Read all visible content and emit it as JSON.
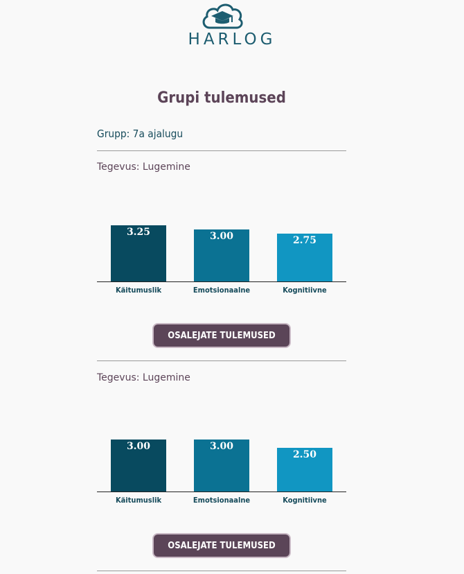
{
  "logo": {
    "text": "HARLOG",
    "icon": "cloud-graduation-cap-icon"
  },
  "page": {
    "title": "Grupi tulemused",
    "group": "Grupp: 7a ajalugu"
  },
  "colors": {
    "bar1": "#084a5f",
    "bar2": "#0b7293",
    "bar3": "#1196c2",
    "button": "#5b4558",
    "title": "#5c4458",
    "group": "#164b5b"
  },
  "sections": [
    {
      "activity": "Tegevus: Lugemine",
      "button_label": "OSALEJATE TULEMUSED"
    },
    {
      "activity": "Tegevus: Lugemine",
      "button_label": "OSALEJATE TULEMUSED"
    }
  ],
  "chart_data": [
    {
      "type": "bar",
      "categories": [
        "Käitumuslik",
        "Emotsionaalne",
        "Kognitiivne"
      ],
      "values": [
        3.25,
        3.0,
        2.75
      ],
      "value_labels": [
        "3.25",
        "3.00",
        "2.75"
      ],
      "ylim": [
        0,
        4
      ]
    },
    {
      "type": "bar",
      "categories": [
        "Käitumuslik",
        "Emotsionaalne",
        "Kognitiivne"
      ],
      "values": [
        3.0,
        3.0,
        2.5
      ],
      "value_labels": [
        "3.00",
        "3.00",
        "2.50"
      ],
      "ylim": [
        0,
        4
      ]
    }
  ]
}
